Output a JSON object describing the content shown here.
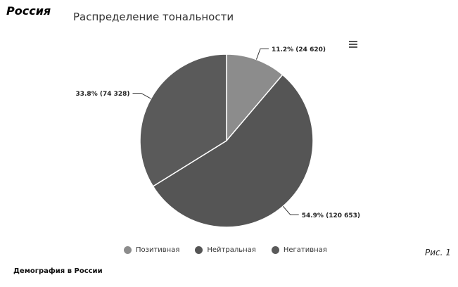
{
  "page": {
    "label": "Россия",
    "figure_caption": "Рис. 1",
    "footer": "Демография в России"
  },
  "colors": {
    "positive": "#8c8c8c",
    "neutral": "#555555",
    "negative": "#5a5a5a",
    "slice_border": "#ffffff",
    "connector": "#333333"
  },
  "chart_data": {
    "type": "pie",
    "title": "Распределение тональности",
    "legend_position": "bottom",
    "slices": [
      {
        "name": "Позитивная",
        "value": 24620,
        "percent": 11.2,
        "label": "11.2% (24 620)"
      },
      {
        "name": "Нейтральная",
        "value": 120653,
        "percent": 54.9,
        "label": "54.9% (120 653)"
      },
      {
        "name": "Негативная",
        "value": 74328,
        "percent": 33.8,
        "label": "33.8% (74 328)"
      }
    ]
  }
}
